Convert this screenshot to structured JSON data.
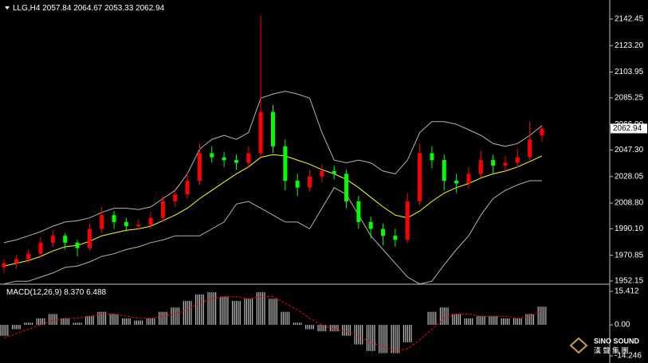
{
  "chart_data": {
    "type": "candlestick",
    "symbol": "LLG,H4",
    "up_color": "#ff0000",
    "down_color": "#00ff00",
    "candles": [
      [
        1962,
        1968,
        1958,
        1965
      ],
      [
        1965,
        1971,
        1961,
        1968
      ],
      [
        1968,
        1975,
        1965,
        1972
      ],
      [
        1972,
        1984,
        1969,
        1980
      ],
      [
        1980,
        1989,
        1977,
        1985
      ],
      [
        1985,
        1987,
        1975,
        1980
      ],
      [
        1980,
        1982,
        1970,
        1976
      ],
      [
        1976,
        1994,
        1974,
        1990
      ],
      [
        1990,
        2006,
        1987,
        2000
      ],
      [
        2000,
        2003,
        1990,
        1995
      ],
      [
        1995,
        1998,
        1988,
        1992
      ],
      [
        1992,
        1997,
        1989,
        1993
      ],
      [
        1993,
        2002,
        1990,
        1998
      ],
      [
        1998,
        2014,
        1995,
        2010
      ],
      [
        2010,
        2019,
        2006,
        2015
      ],
      [
        2015,
        2031,
        2012,
        2025
      ],
      [
        2025,
        2052,
        2022,
        2045
      ],
      [
        2045,
        2050,
        2038,
        2042
      ],
      [
        2042,
        2046,
        2035,
        2040
      ],
      [
        2040,
        2044,
        2033,
        2038
      ],
      [
        2038,
        2050,
        2035,
        2045
      ],
      [
        2045,
        2145,
        2042,
        2075
      ],
      [
        2075,
        2080,
        2045,
        2050
      ],
      [
        2050,
        2055,
        2018,
        2025
      ],
      [
        2025,
        2030,
        2014,
        2020
      ],
      [
        2020,
        2033,
        2017,
        2028
      ],
      [
        2028,
        2037,
        2024,
        2032
      ],
      [
        2032,
        2036,
        2026,
        2030
      ],
      [
        2030,
        2033,
        2005,
        2010
      ],
      [
        2010,
        2014,
        1990,
        1995
      ],
      [
        1995,
        1999,
        1983,
        1990
      ],
      [
        1990,
        1994,
        1978,
        1985
      ],
      [
        1985,
        1990,
        1977,
        1982
      ],
      [
        1982,
        2016,
        1980,
        2010
      ],
      [
        2010,
        2052,
        2007,
        2045
      ],
      [
        2045,
        2050,
        2034,
        2040
      ],
      [
        2040,
        2044,
        2018,
        2025
      ],
      [
        2025,
        2030,
        2016,
        2023
      ],
      [
        2023,
        2035,
        2019,
        2030
      ],
      [
        2030,
        2047,
        2027,
        2040
      ],
      [
        2040,
        2044,
        2030,
        2036
      ],
      [
        2036,
        2043,
        2031,
        2038
      ],
      [
        2038,
        2048,
        2035,
        2042
      ],
      [
        2042,
        2068,
        2040,
        2055
      ],
      [
        2057.84,
        2064.67,
        2053.33,
        2062.94
      ]
    ],
    "bands": {
      "upper": [
        1980,
        1982,
        1985,
        1988,
        1992,
        1995,
        1996,
        1998,
        2002,
        2005,
        2005,
        2004,
        2006,
        2012,
        2018,
        2030,
        2048,
        2055,
        2058,
        2055,
        2060,
        2085,
        2088,
        2090,
        2088,
        2085,
        2060,
        2040,
        2038,
        2040,
        2038,
        2032,
        2030,
        2040,
        2060,
        2068,
        2068,
        2066,
        2062,
        2058,
        2052,
        2050,
        2052,
        2058,
        2065
      ],
      "middle": [
        1963,
        1965,
        1967,
        1970,
        1974,
        1977,
        1978,
        1981,
        1985,
        1987,
        1989,
        1990,
        1992,
        1996,
        2000,
        2005,
        2012,
        2018,
        2024,
        2030,
        2035,
        2042,
        2044,
        2043,
        2040,
        2037,
        2033,
        2030,
        2026,
        2020,
        2013,
        2006,
        2000,
        1998,
        2003,
        2010,
        2016,
        2020,
        2023,
        2027,
        2030,
        2032,
        2035,
        2039,
        2043
      ],
      "lower": [
        1950,
        1952,
        1952,
        1955,
        1958,
        1962,
        1963,
        1966,
        1970,
        1972,
        1975,
        1977,
        1980,
        1982,
        1985,
        1985,
        1985,
        1990,
        1995,
        2008,
        2010,
        2005,
        2000,
        1995,
        1995,
        1990,
        2005,
        2020,
        2015,
        2000,
        1985,
        1975,
        1965,
        1955,
        1950,
        1952,
        1964,
        1975,
        1985,
        2000,
        2012,
        2018,
        2022,
        2025,
        2025
      ],
      "upper_color": "#b4b4b4",
      "middle_color": "#ffff00",
      "lower_color": "#b4b4b4"
    },
    "ylim": [
      1950.4,
      2156.3
    ],
    "yticks": [
      2142.45,
      {
        "value": 2123.2,
        "label": "2123.20"
      },
      2103.95,
      2085.25,
      {
        "value": 2066,
        "label": "2066.00"
      },
      {
        "value": 2047.3,
        "label": "2047.30"
      },
      2028.05,
      {
        "value": 2008.8,
        "label": "2008.80"
      },
      {
        "value": 1990.1,
        "label": "1990.10"
      },
      1970.85,
      1952.15
    ],
    "macd": {
      "name": "MACD(12,26,9)",
      "value_labels": [
        "8.370",
        "6.488"
      ],
      "histogram": [
        -5,
        -2,
        1,
        3,
        5,
        3,
        1,
        4,
        6,
        5,
        3,
        2,
        3,
        6,
        8,
        11,
        14,
        15,
        13,
        11,
        12,
        15,
        12,
        6,
        1,
        -2,
        -3,
        -3,
        -5,
        -9,
        -12,
        -13,
        -13,
        -8,
        0,
        6,
        8,
        5,
        3,
        4,
        4,
        3,
        3,
        5,
        8.37
      ],
      "signal": [
        -6,
        -4,
        -2,
        0,
        2,
        3,
        3,
        4,
        5,
        5,
        4,
        3,
        3,
        4,
        5,
        7,
        10,
        12,
        13,
        13,
        12,
        13,
        13,
        10,
        7,
        3,
        0,
        -2,
        -3,
        -5,
        -8,
        -10,
        -12,
        -11,
        -7,
        -2,
        3,
        5,
        5,
        4,
        4,
        4,
        3,
        4,
        6.488
      ],
      "histogram_color": "#c0c0c0",
      "signal_color": "#ff0000",
      "ylim": [
        -17.54,
        18.34
      ],
      "yticks": [
        15.412,
        {
          "value": 0,
          "label": "0.00"
        },
        -14.246
      ]
    },
    "watermark": {
      "line1": "SiNO SOUND",
      "line2": "漢 聲 集 團"
    }
  }
}
